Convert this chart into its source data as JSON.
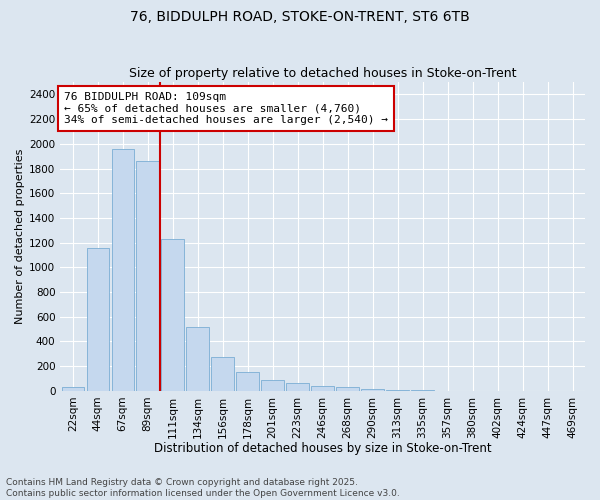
{
  "title1": "76, BIDDULPH ROAD, STOKE-ON-TRENT, ST6 6TB",
  "title2": "Size of property relative to detached houses in Stoke-on-Trent",
  "xlabel": "Distribution of detached houses by size in Stoke-on-Trent",
  "ylabel": "Number of detached properties",
  "annotation_text": "76 BIDDULPH ROAD: 109sqm\n← 65% of detached houses are smaller (4,760)\n34% of semi-detached houses are larger (2,540) →",
  "categories": [
    "22sqm",
    "44sqm",
    "67sqm",
    "89sqm",
    "111sqm",
    "134sqm",
    "156sqm",
    "178sqm",
    "201sqm",
    "223sqm",
    "246sqm",
    "268sqm",
    "290sqm",
    "313sqm",
    "335sqm",
    "357sqm",
    "380sqm",
    "402sqm",
    "424sqm",
    "447sqm",
    "469sqm"
  ],
  "values": [
    28,
    1160,
    1960,
    1860,
    1230,
    520,
    275,
    155,
    90,
    60,
    40,
    35,
    15,
    5,
    3,
    2,
    1,
    1,
    1,
    1,
    1
  ],
  "bar_color": "#c5d8ee",
  "bar_edge_color": "#7aadd4",
  "vline_color": "#cc0000",
  "annotation_box_edgecolor": "#cc0000",
  "background_color": "#dce6f0",
  "grid_color": "#ffffff",
  "ylim": [
    0,
    2500
  ],
  "yticks": [
    0,
    200,
    400,
    600,
    800,
    1000,
    1200,
    1400,
    1600,
    1800,
    2000,
    2200,
    2400
  ],
  "footer": "Contains HM Land Registry data © Crown copyright and database right 2025.\nContains public sector information licensed under the Open Government Licence v3.0.",
  "title_fontsize": 10,
  "subtitle_fontsize": 9,
  "tick_fontsize": 7.5,
  "xlabel_fontsize": 8.5,
  "ylabel_fontsize": 8,
  "annotation_fontsize": 8,
  "footer_fontsize": 6.5,
  "vline_x_index": 4
}
